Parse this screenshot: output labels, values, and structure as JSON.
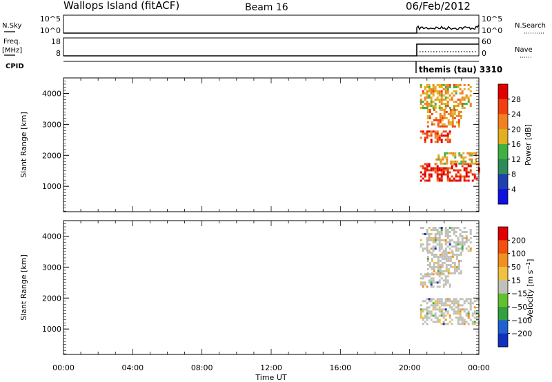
{
  "header": {
    "title": "Wallops Island (fitACF)",
    "beam": "Beam 16",
    "date": "06/Feb/2012"
  },
  "top_panels": {
    "nsky": {
      "left_label": "N.Sky",
      "left_ticks": [
        "10^5",
        "10^0"
      ],
      "right_ticks": [
        "10^5",
        "10^0"
      ],
      "right_label": "N.Search"
    },
    "freq": {
      "left_label_1": "Freq.",
      "left_label_2": "[MHz]",
      "left_ticks": [
        "18",
        "8"
      ],
      "right_ticks": [
        "60",
        "0"
      ],
      "right_label": "Nave"
    },
    "cpid": {
      "label": "CPID",
      "value": "themis (tau) 3310"
    }
  },
  "chart_data": [
    {
      "type": "heatmap",
      "name": "power-panel",
      "title": "",
      "xlabel": "Time UT",
      "ylabel": "Slant Range [km]",
      "x_ticks": [
        "00:00",
        "04:00",
        "08:00",
        "12:00",
        "16:00",
        "20:00",
        "00:00"
      ],
      "xlim_hours": [
        0,
        24
      ],
      "y_ticks": [
        1000,
        2000,
        3000,
        4000
      ],
      "ylim_km": [
        180,
        4500
      ],
      "colorbar": {
        "label": "Power [dB]",
        "ticks": [
          "4",
          "8",
          "12",
          "16",
          "20",
          "24",
          "28"
        ],
        "range": [
          0,
          30
        ],
        "colors": [
          "#1010e0",
          "#2040b0",
          "#2e8a57",
          "#40b040",
          "#e0b020",
          "#f08020",
          "#f04010",
          "#e00000"
        ]
      },
      "echo_regions": [
        {
          "t0": 20.6,
          "t1": 22.3,
          "r0": 2450,
          "r1": 2800,
          "level": 25
        },
        {
          "t0": 21.0,
          "t1": 23.0,
          "r0": 2900,
          "r1": 3500,
          "level": 20
        },
        {
          "t0": 20.6,
          "t1": 24.0,
          "r0": 1150,
          "r1": 1750,
          "level": 26
        },
        {
          "t0": 21.5,
          "t1": 23.8,
          "r0": 1700,
          "r1": 2100,
          "level": 17
        },
        {
          "t0": 20.6,
          "t1": 23.5,
          "r0": 3500,
          "r1": 4300,
          "level": 18
        }
      ]
    },
    {
      "type": "heatmap",
      "name": "velocity-panel",
      "title": "",
      "xlabel": "Time UT",
      "ylabel": "Slant Range [km]",
      "x_ticks": [
        "00:00",
        "04:00",
        "08:00",
        "12:00",
        "16:00",
        "20:00",
        "00:00"
      ],
      "xlim_hours": [
        0,
        24
      ],
      "y_ticks": [
        1000,
        2000,
        3000,
        4000
      ],
      "ylim_km": [
        180,
        4500
      ],
      "colorbar": {
        "label": "Velocity [m s^-1]",
        "ticks": [
          "200",
          "100",
          "50",
          "15",
          "−15",
          "−50",
          "−100",
          "−200"
        ],
        "colors": [
          "#1030c0",
          "#2060d0",
          "#30a040",
          "#60c030",
          "#c0c0b8",
          "#f0c040",
          "#f09020",
          "#f05010",
          "#e00000"
        ]
      },
      "echo_regions": [
        {
          "t0": 20.6,
          "t1": 24.0,
          "r0": 1150,
          "r1": 2000,
          "level": "gray"
        },
        {
          "t0": 20.6,
          "t1": 22.3,
          "r0": 2350,
          "r1": 2800,
          "level": "gray"
        },
        {
          "t0": 21.0,
          "t1": 23.0,
          "r0": 2800,
          "r1": 3500,
          "level": "gray"
        },
        {
          "t0": 20.6,
          "t1": 23.5,
          "r0": 3500,
          "r1": 4300,
          "level": "gray"
        }
      ]
    }
  ]
}
